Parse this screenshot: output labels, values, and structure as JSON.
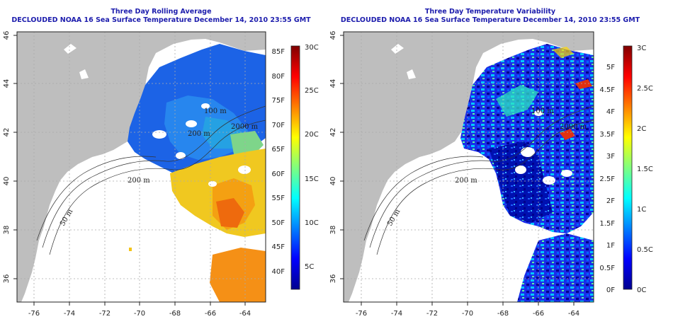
{
  "left_panel": {
    "title_line1": "Three Day Rolling Average",
    "title_line2": "DECLOUDED NOAA 16 Sea Surface Temperature December 14, 2010 23:55 GMT",
    "colorbar_f": [
      "40F",
      "45F",
      "50F",
      "55F",
      "60F",
      "65F",
      "70F",
      "75F",
      "80F",
      "85F"
    ],
    "colorbar_c": [
      "5C",
      "10C",
      "15C",
      "20C",
      "25C",
      "30C"
    ],
    "contours": [
      "200 m",
      "200 m",
      "100 m",
      "2000 m",
      "50 m"
    ]
  },
  "right_panel": {
    "title_line1": "Three Day Temperature Variability",
    "title_line2": "DECLOUDED NOAA 16 Sea Surface Temperature December 14, 2010 23:55 GMT",
    "colorbar_f": [
      "0F",
      "0.5F",
      "1F",
      "1.5F",
      "2F",
      "2.5F",
      "3F",
      "3.5F",
      "4F",
      "4.5F",
      "5F"
    ],
    "colorbar_c": [
      "0C",
      "0.5C",
      "1C",
      "1.5C",
      "2C",
      "2.5C",
      "3C"
    ],
    "contours": [
      "200 m",
      "100 m",
      "2000 m",
      "50 m"
    ]
  },
  "axes": {
    "lon_ticks": [
      "-76",
      "-74",
      "-72",
      "-70",
      "-68",
      "-66",
      "-64"
    ],
    "lat_ticks": [
      "46",
      "44",
      "42",
      "40",
      "38",
      "36"
    ]
  },
  "colors": {
    "title": "#1d1dad",
    "land": "#bebebe",
    "frame": "#222222",
    "grid": "#aaaaaa"
  }
}
